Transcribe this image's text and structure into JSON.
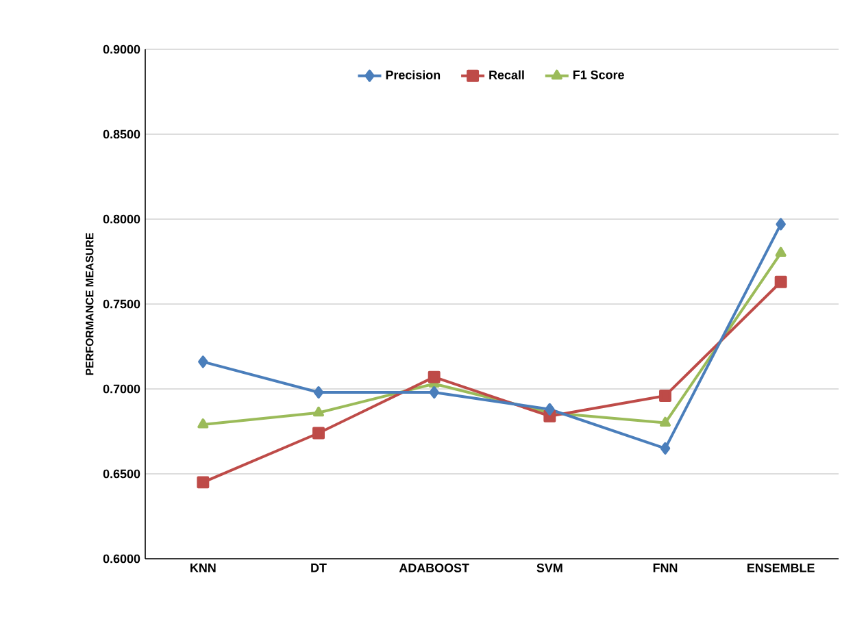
{
  "chart_data": {
    "type": "line",
    "ylabel": "PERFORMANCE MEASURE",
    "categories": [
      "KNN",
      "DT",
      "ADABOOST",
      "SVM",
      "FNN",
      "ENSEMBLE"
    ],
    "series": [
      {
        "name": "Precision",
        "color": "#4a7ebb",
        "marker": "diamond",
        "values": [
          0.716,
          0.698,
          0.698,
          0.688,
          0.665,
          0.797
        ]
      },
      {
        "name": "Recall",
        "color": "#be4b48",
        "marker": "square",
        "values": [
          0.645,
          0.674,
          0.707,
          0.684,
          0.696,
          0.763
        ]
      },
      {
        "name": "F1 Score",
        "color": "#9bbb59",
        "marker": "triangle",
        "values": [
          0.679,
          0.686,
          0.703,
          0.686,
          0.68,
          0.78
        ]
      }
    ],
    "ylim": [
      0.6,
      0.9
    ],
    "yticks": [
      {
        "value": 0.6,
        "label": "0.6000"
      },
      {
        "value": 0.65,
        "label": "0.6500"
      },
      {
        "value": 0.7,
        "label": "0.7000"
      },
      {
        "value": 0.75,
        "label": "0.7500"
      },
      {
        "value": 0.8,
        "label": "0.8000"
      },
      {
        "value": 0.85,
        "label": "0.8500"
      },
      {
        "value": 0.9,
        "label": "0.9000"
      }
    ],
    "grid": "y",
    "legend": "top",
    "line_style": "solid"
  }
}
